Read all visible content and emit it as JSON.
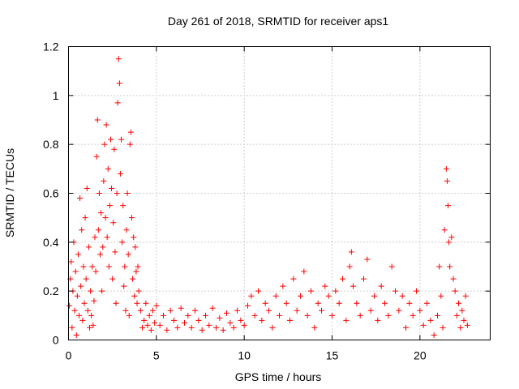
{
  "chart_data": {
    "type": "scatter",
    "title": "Day 261 of 2018, SRMTID for receiver aps1",
    "xlabel": "GPS time / hours",
    "ylabel": "SRMTID / TECUs",
    "xlim": [
      0,
      24
    ],
    "ylim": [
      0,
      1.2
    ],
    "x_ticks": [
      "0",
      "5",
      "10",
      "15",
      "20"
    ],
    "y_ticks": [
      "0",
      "0.2",
      "0.4",
      "0.6",
      "0.8",
      "1",
      "1.2"
    ],
    "grid": true,
    "marker": "+",
    "marker_color": "#ff0000",
    "series": [
      {
        "name": "SRMTID",
        "points": [
          [
            0.05,
            0.14
          ],
          [
            0.1,
            0.25
          ],
          [
            0.15,
            0.32
          ],
          [
            0.2,
            0.05
          ],
          [
            0.25,
            0.2
          ],
          [
            0.3,
            0.4
          ],
          [
            0.35,
            0.12
          ],
          [
            0.4,
            0.28
          ],
          [
            0.45,
            0.02
          ],
          [
            0.5,
            0.18
          ],
          [
            0.55,
            0.35
          ],
          [
            0.6,
            0.1
          ],
          [
            0.65,
            0.58
          ],
          [
            0.7,
            0.22
          ],
          [
            0.75,
            0.45
          ],
          [
            0.8,
            0.08
          ],
          [
            0.85,
            0.3
          ],
          [
            0.9,
            0.15
          ],
          [
            0.95,
            0.5
          ],
          [
            1.0,
            0.25
          ],
          [
            1.05,
            0.62
          ],
          [
            1.1,
            0.12
          ],
          [
            1.15,
            0.38
          ],
          [
            1.2,
            0.05
          ],
          [
            1.25,
            0.2
          ],
          [
            1.3,
            0.1
          ],
          [
            1.35,
            0.3
          ],
          [
            1.4,
            0.06
          ],
          [
            1.45,
            0.16
          ],
          [
            1.5,
            0.42
          ],
          [
            1.55,
            0.28
          ],
          [
            1.6,
            0.75
          ],
          [
            1.65,
            0.9
          ],
          [
            1.7,
            0.45
          ],
          [
            1.75,
            0.6
          ],
          [
            1.8,
            0.35
          ],
          [
            1.85,
            0.52
          ],
          [
            1.9,
            0.2
          ],
          [
            1.95,
            0.38
          ],
          [
            2.0,
            0.65
          ],
          [
            2.05,
            0.8
          ],
          [
            2.1,
            0.5
          ],
          [
            2.15,
            0.88
          ],
          [
            2.2,
            0.42
          ],
          [
            2.25,
            0.7
          ],
          [
            2.3,
            0.3
          ],
          [
            2.35,
            0.55
          ],
          [
            2.4,
            0.82
          ],
          [
            2.45,
            0.62
          ],
          [
            2.5,
            0.25
          ],
          [
            2.55,
            0.48
          ],
          [
            2.6,
            0.78
          ],
          [
            2.65,
            0.36
          ],
          [
            2.7,
            0.15
          ],
          [
            2.75,
            0.6
          ],
          [
            2.8,
            0.97
          ],
          [
            2.85,
            1.15
          ],
          [
            2.9,
            1.05
          ],
          [
            2.95,
            0.68
          ],
          [
            3.0,
            0.82
          ],
          [
            3.05,
            0.4
          ],
          [
            3.1,
            0.55
          ],
          [
            3.15,
            0.22
          ],
          [
            3.2,
            0.3
          ],
          [
            3.25,
            0.12
          ],
          [
            3.3,
            0.45
          ],
          [
            3.35,
            0.6
          ],
          [
            3.4,
            0.35
          ],
          [
            3.45,
            0.1
          ],
          [
            3.5,
            0.8
          ],
          [
            3.55,
            0.85
          ],
          [
            3.6,
            0.5
          ],
          [
            3.65,
            0.25
          ],
          [
            3.7,
            0.42
          ],
          [
            3.75,
            0.18
          ],
          [
            3.8,
            0.38
          ],
          [
            3.85,
            0.28
          ],
          [
            3.9,
            0.15
          ],
          [
            3.95,
            0.3
          ],
          [
            4.0,
            0.2
          ],
          [
            4.1,
            0.12
          ],
          [
            4.2,
            0.05
          ],
          [
            4.3,
            0.08
          ],
          [
            4.4,
            0.15
          ],
          [
            4.5,
            0.06
          ],
          [
            4.6,
            0.1
          ],
          [
            4.7,
            0.04
          ],
          [
            4.8,
            0.12
          ],
          [
            4.9,
            0.07
          ],
          [
            5.0,
            0.14
          ],
          [
            5.2,
            0.06
          ],
          [
            5.4,
            0.1
          ],
          [
            5.6,
            0.04
          ],
          [
            5.8,
            0.12
          ],
          [
            6.0,
            0.08
          ],
          [
            6.2,
            0.05
          ],
          [
            6.4,
            0.13
          ],
          [
            6.6,
            0.07
          ],
          [
            6.8,
            0.1
          ],
          [
            7.0,
            0.05
          ],
          [
            7.2,
            0.12
          ],
          [
            7.4,
            0.08
          ],
          [
            7.6,
            0.04
          ],
          [
            7.8,
            0.1
          ],
          [
            8.0,
            0.06
          ],
          [
            8.2,
            0.13
          ],
          [
            8.4,
            0.05
          ],
          [
            8.6,
            0.09
          ],
          [
            8.8,
            0.04
          ],
          [
            9.0,
            0.11
          ],
          [
            9.2,
            0.07
          ],
          [
            9.4,
            0.05
          ],
          [
            9.6,
            0.12
          ],
          [
            9.8,
            0.08
          ],
          [
            10.0,
            0.06
          ],
          [
            10.2,
            0.14
          ],
          [
            10.4,
            0.18
          ],
          [
            10.6,
            0.1
          ],
          [
            10.8,
            0.2
          ],
          [
            11.0,
            0.08
          ],
          [
            11.2,
            0.15
          ],
          [
            11.4,
            0.12
          ],
          [
            11.6,
            0.05
          ],
          [
            11.8,
            0.18
          ],
          [
            12.0,
            0.1
          ],
          [
            12.2,
            0.22
          ],
          [
            12.4,
            0.15
          ],
          [
            12.6,
            0.08
          ],
          [
            12.8,
            0.25
          ],
          [
            13.0,
            0.12
          ],
          [
            13.2,
            0.18
          ],
          [
            13.4,
            0.28
          ],
          [
            13.6,
            0.1
          ],
          [
            13.8,
            0.2
          ],
          [
            14.0,
            0.05
          ],
          [
            14.2,
            0.15
          ],
          [
            14.4,
            0.12
          ],
          [
            14.6,
            0.22
          ],
          [
            14.8,
            0.18
          ],
          [
            15.0,
            0.1
          ],
          [
            15.2,
            0.2
          ],
          [
            15.4,
            0.15
          ],
          [
            15.6,
            0.25
          ],
          [
            15.8,
            0.08
          ],
          [
            16.0,
            0.3
          ],
          [
            16.1,
            0.36
          ],
          [
            16.2,
            0.22
          ],
          [
            16.4,
            0.15
          ],
          [
            16.6,
            0.1
          ],
          [
            16.8,
            0.25
          ],
          [
            17.0,
            0.33
          ],
          [
            17.2,
            0.12
          ],
          [
            17.4,
            0.18
          ],
          [
            17.6,
            0.08
          ],
          [
            17.8,
            0.22
          ],
          [
            18.0,
            0.15
          ],
          [
            18.2,
            0.1
          ],
          [
            18.4,
            0.3
          ],
          [
            18.6,
            0.2
          ],
          [
            18.8,
            0.12
          ],
          [
            19.0,
            0.18
          ],
          [
            19.2,
            0.05
          ],
          [
            19.4,
            0.15
          ],
          [
            19.6,
            0.1
          ],
          [
            19.8,
            0.2
          ],
          [
            20.0,
            0.12
          ],
          [
            20.2,
            0.06
          ],
          [
            20.4,
            0.15
          ],
          [
            20.6,
            0.08
          ],
          [
            20.8,
            0.02
          ],
          [
            21.0,
            0.1
          ],
          [
            21.1,
            0.3
          ],
          [
            21.2,
            0.18
          ],
          [
            21.3,
            0.05
          ],
          [
            21.4,
            0.45
          ],
          [
            21.5,
            0.7
          ],
          [
            21.55,
            0.65
          ],
          [
            21.6,
            0.55
          ],
          [
            21.65,
            0.4
          ],
          [
            21.7,
            0.3
          ],
          [
            21.8,
            0.42
          ],
          [
            21.9,
            0.25
          ],
          [
            22.0,
            0.2
          ],
          [
            22.1,
            0.1
          ],
          [
            22.2,
            0.15
          ],
          [
            22.3,
            0.05
          ],
          [
            22.4,
            0.12
          ],
          [
            22.5,
            0.08
          ],
          [
            22.6,
            0.18
          ],
          [
            22.7,
            0.06
          ]
        ]
      }
    ]
  }
}
